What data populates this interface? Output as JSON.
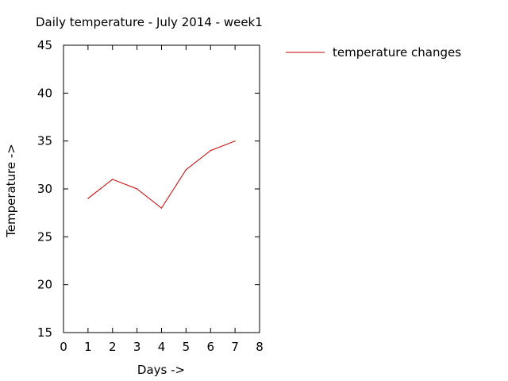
{
  "chart_data": {
    "type": "line",
    "title": "Daily temperature - July 2014 - week1",
    "xlabel": "Days ->",
    "ylabel": "Temperature ->",
    "xlim": [
      0,
      8
    ],
    "ylim": [
      15,
      45
    ],
    "xticks": [
      0,
      1,
      2,
      3,
      4,
      5,
      6,
      7,
      8
    ],
    "yticks": [
      15,
      20,
      25,
      30,
      35,
      40,
      45
    ],
    "grid": false,
    "legend_position": "outside-top-right",
    "series": [
      {
        "name": "temperature changes",
        "color": "#cc0000",
        "x": [
          1,
          2,
          3,
          4,
          5,
          6,
          7
        ],
        "y": [
          29,
          31,
          30,
          28,
          32,
          34,
          35
        ]
      }
    ]
  }
}
